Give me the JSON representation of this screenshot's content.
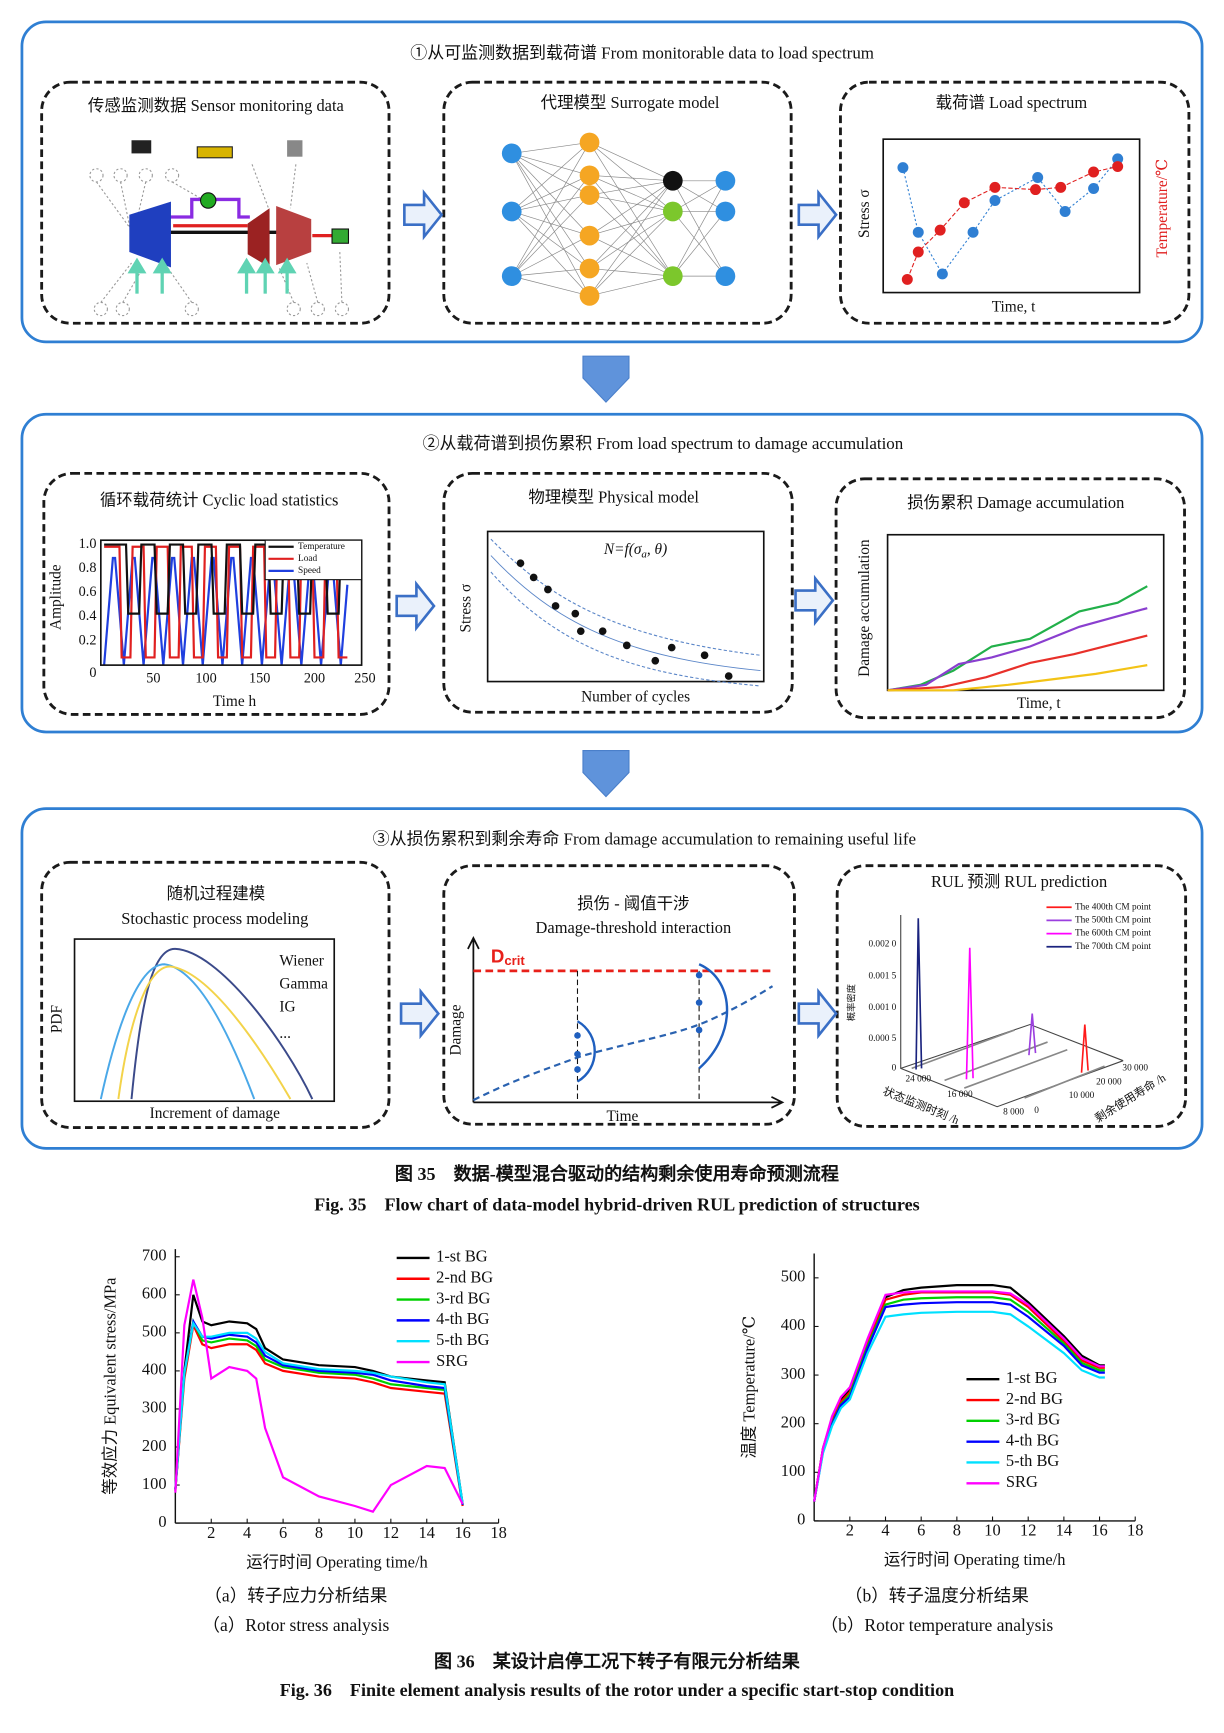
{
  "figure35": {
    "panels": [
      {
        "title": "①从可监测数据到载荷谱 From monitorable data to load spectrum",
        "boxes": [
          {
            "title": "传感监测数据 Sensor monitoring data"
          },
          {
            "title": "代理模型 Surrogate model"
          },
          {
            "title": "载荷谱 Load spectrum",
            "y_label": "Stress σ",
            "x_label": "Time, t",
            "y2_label": "Temperature/℃"
          }
        ]
      },
      {
        "title": "②从载荷谱到损伤累积 From load spectrum to damage accumulation",
        "boxes": [
          {
            "title": "循环载荷统计 Cyclic load statistics",
            "y_label": "Amplitude",
            "x_label": "Time h",
            "yticks": [
              "1.0",
              "0.8",
              "0.6",
              "0.4",
              "0.2",
              "0"
            ],
            "xticks": [
              "50",
              "100",
              "150",
              "200",
              "250"
            ],
            "legend": [
              "Temperature",
              "Load",
              "Speed"
            ]
          },
          {
            "title": "物理模型 Physical model",
            "formula": "N=f(σ",
            "formula_sub": "a",
            "formula_end": ", θ)",
            "y_label": "Stress σ",
            "x_label": "Number of cycles"
          },
          {
            "title": "损伤累积 Damage accumulation",
            "y_label": "Damage accumulation",
            "x_label": "Time, t"
          }
        ]
      },
      {
        "title": "③从损伤累积到剩余寿命 From damage accumulation to remaining useful life",
        "boxes": [
          {
            "title": "随机过程建模",
            "subtitle": "Stochastic process modeling",
            "y_label": "PDF",
            "x_label": "Increment of damage",
            "legend": [
              "Wiener",
              "Gamma",
              "IG",
              "..."
            ]
          },
          {
            "title": "损伤 - 阈值干涉",
            "subtitle": "Damage-threshold interaction",
            "threshold": "D",
            "threshold_sub": "crit",
            "y_label": "Damage",
            "x_label": "Time"
          },
          {
            "title": "RUL 预测 RUL prediction",
            "legend": [
              "The 400th CM point",
              "The 500th CM point",
              "The 600th CM point",
              "The 700th CM point"
            ],
            "zticks": [
              "0.002 0",
              "0.001 5",
              "0.001 0",
              "0.000 5",
              "0"
            ],
            "z_label": "概率密度",
            "xticks": [
              "24 000",
              "16 000",
              "8 000"
            ],
            "x_label": "状态监测时刻 /h",
            "yticks": [
              "30 000",
              "20 000",
              "10 000",
              "0"
            ],
            "y_label": "剩余使用寿命 /h"
          }
        ]
      }
    ],
    "caption_cn": "图 35　数据-模型混合驱动的结构剩余使用寿命预测流程",
    "caption_en": "Fig. 35　Flow chart of data-model hybrid-driven RUL prediction of structures"
  },
  "chart_data": [
    {
      "type": "line",
      "x_label": "运行时间 Operating time/h",
      "y_label": "等效应力 Equivalent stress/MPa",
      "x": [
        0,
        0.5,
        1,
        1.5,
        2,
        3,
        4,
        4.5,
        5,
        6,
        8,
        10,
        11,
        12,
        14,
        15,
        16
      ],
      "series": [
        {
          "name": "1-st BG",
          "color": "#000000",
          "values": [
            90,
            400,
            600,
            530,
            520,
            530,
            525,
            510,
            460,
            430,
            415,
            410,
            400,
            385,
            375,
            370,
            50
          ]
        },
        {
          "name": "2-nd BG",
          "color": "#ff0000",
          "values": [
            85,
            380,
            520,
            470,
            460,
            470,
            470,
            455,
            420,
            400,
            385,
            380,
            370,
            355,
            345,
            340,
            45
          ]
        },
        {
          "name": "3-rd BG",
          "color": "#00d000",
          "values": [
            88,
            390,
            530,
            480,
            475,
            485,
            480,
            465,
            430,
            410,
            395,
            390,
            380,
            365,
            355,
            350,
            48
          ]
        },
        {
          "name": "4-th BG",
          "color": "#0000ff",
          "values": [
            88,
            395,
            530,
            490,
            485,
            495,
            490,
            475,
            440,
            415,
            400,
            395,
            390,
            375,
            360,
            355,
            48
          ]
        },
        {
          "name": "5-th BG",
          "color": "#00e0ff",
          "values": [
            88,
            395,
            525,
            490,
            490,
            500,
            500,
            485,
            450,
            420,
            405,
            400,
            395,
            385,
            370,
            365,
            50
          ]
        },
        {
          "name": "SRG",
          "color": "#ff00ff",
          "values": [
            80,
            520,
            640,
            540,
            380,
            410,
            400,
            380,
            250,
            120,
            70,
            45,
            30,
            100,
            150,
            145,
            50
          ]
        }
      ],
      "xlim": [
        0,
        18
      ],
      "ylim": [
        0,
        720
      ],
      "xticks": [
        2,
        4,
        6,
        8,
        10,
        12,
        14,
        16,
        18
      ],
      "yticks": [
        0,
        100,
        200,
        300,
        400,
        500,
        600,
        700
      ],
      "legend": "upper right",
      "caption_cn": "（a）转子应力分析结果",
      "caption_en": "（a）Rotor stress analysis"
    },
    {
      "type": "line",
      "x_label": "运行时间 Operating time/h",
      "y_label": "温度 Temperature/℃",
      "x": [
        0,
        0.5,
        1,
        1.5,
        2,
        3,
        4,
        5,
        6,
        8,
        10,
        11,
        12,
        14,
        15,
        16,
        16.3
      ],
      "series": [
        {
          "name": "1-st BG",
          "color": "#000000",
          "values": [
            40,
            150,
            210,
            250,
            270,
            370,
            460,
            475,
            480,
            485,
            485,
            480,
            450,
            380,
            340,
            320,
            320
          ]
        },
        {
          "name": "2-nd BG",
          "color": "#ff0000",
          "values": [
            40,
            148,
            205,
            245,
            265,
            365,
            455,
            465,
            470,
            470,
            470,
            465,
            440,
            370,
            330,
            315,
            315
          ]
        },
        {
          "name": "3-rd BG",
          "color": "#00d000",
          "values": [
            40,
            145,
            200,
            240,
            260,
            360,
            445,
            455,
            458,
            460,
            460,
            455,
            430,
            365,
            325,
            310,
            310
          ]
        },
        {
          "name": "4-th BG",
          "color": "#0000ff",
          "values": [
            40,
            143,
            198,
            238,
            255,
            355,
            440,
            445,
            448,
            450,
            450,
            445,
            420,
            360,
            320,
            305,
            305
          ]
        },
        {
          "name": "5-th BG",
          "color": "#00e0ff",
          "values": [
            40,
            140,
            195,
            232,
            250,
            345,
            420,
            425,
            428,
            430,
            430,
            425,
            400,
            345,
            310,
            295,
            295
          ]
        },
        {
          "name": "SRG",
          "color": "#ff00ff",
          "values": [
            40,
            150,
            215,
            255,
            275,
            375,
            465,
            470,
            472,
            472,
            472,
            468,
            445,
            375,
            335,
            318,
            318
          ]
        }
      ],
      "xlim": [
        0,
        18
      ],
      "ylim": [
        0,
        550
      ],
      "xticks": [
        2,
        4,
        6,
        8,
        10,
        12,
        14,
        16,
        18
      ],
      "yticks": [
        0,
        100,
        200,
        300,
        400,
        500
      ],
      "legend": "center right",
      "caption_cn": "（b）转子温度分析结果",
      "caption_en": "（b）Rotor temperature analysis"
    }
  ],
  "figure36": {
    "caption_cn": "图 36　某设计启停工况下转子有限元分析结果",
    "caption_en": "Fig. 36　Finite element analysis results of the rotor under a specific start-stop condition"
  }
}
